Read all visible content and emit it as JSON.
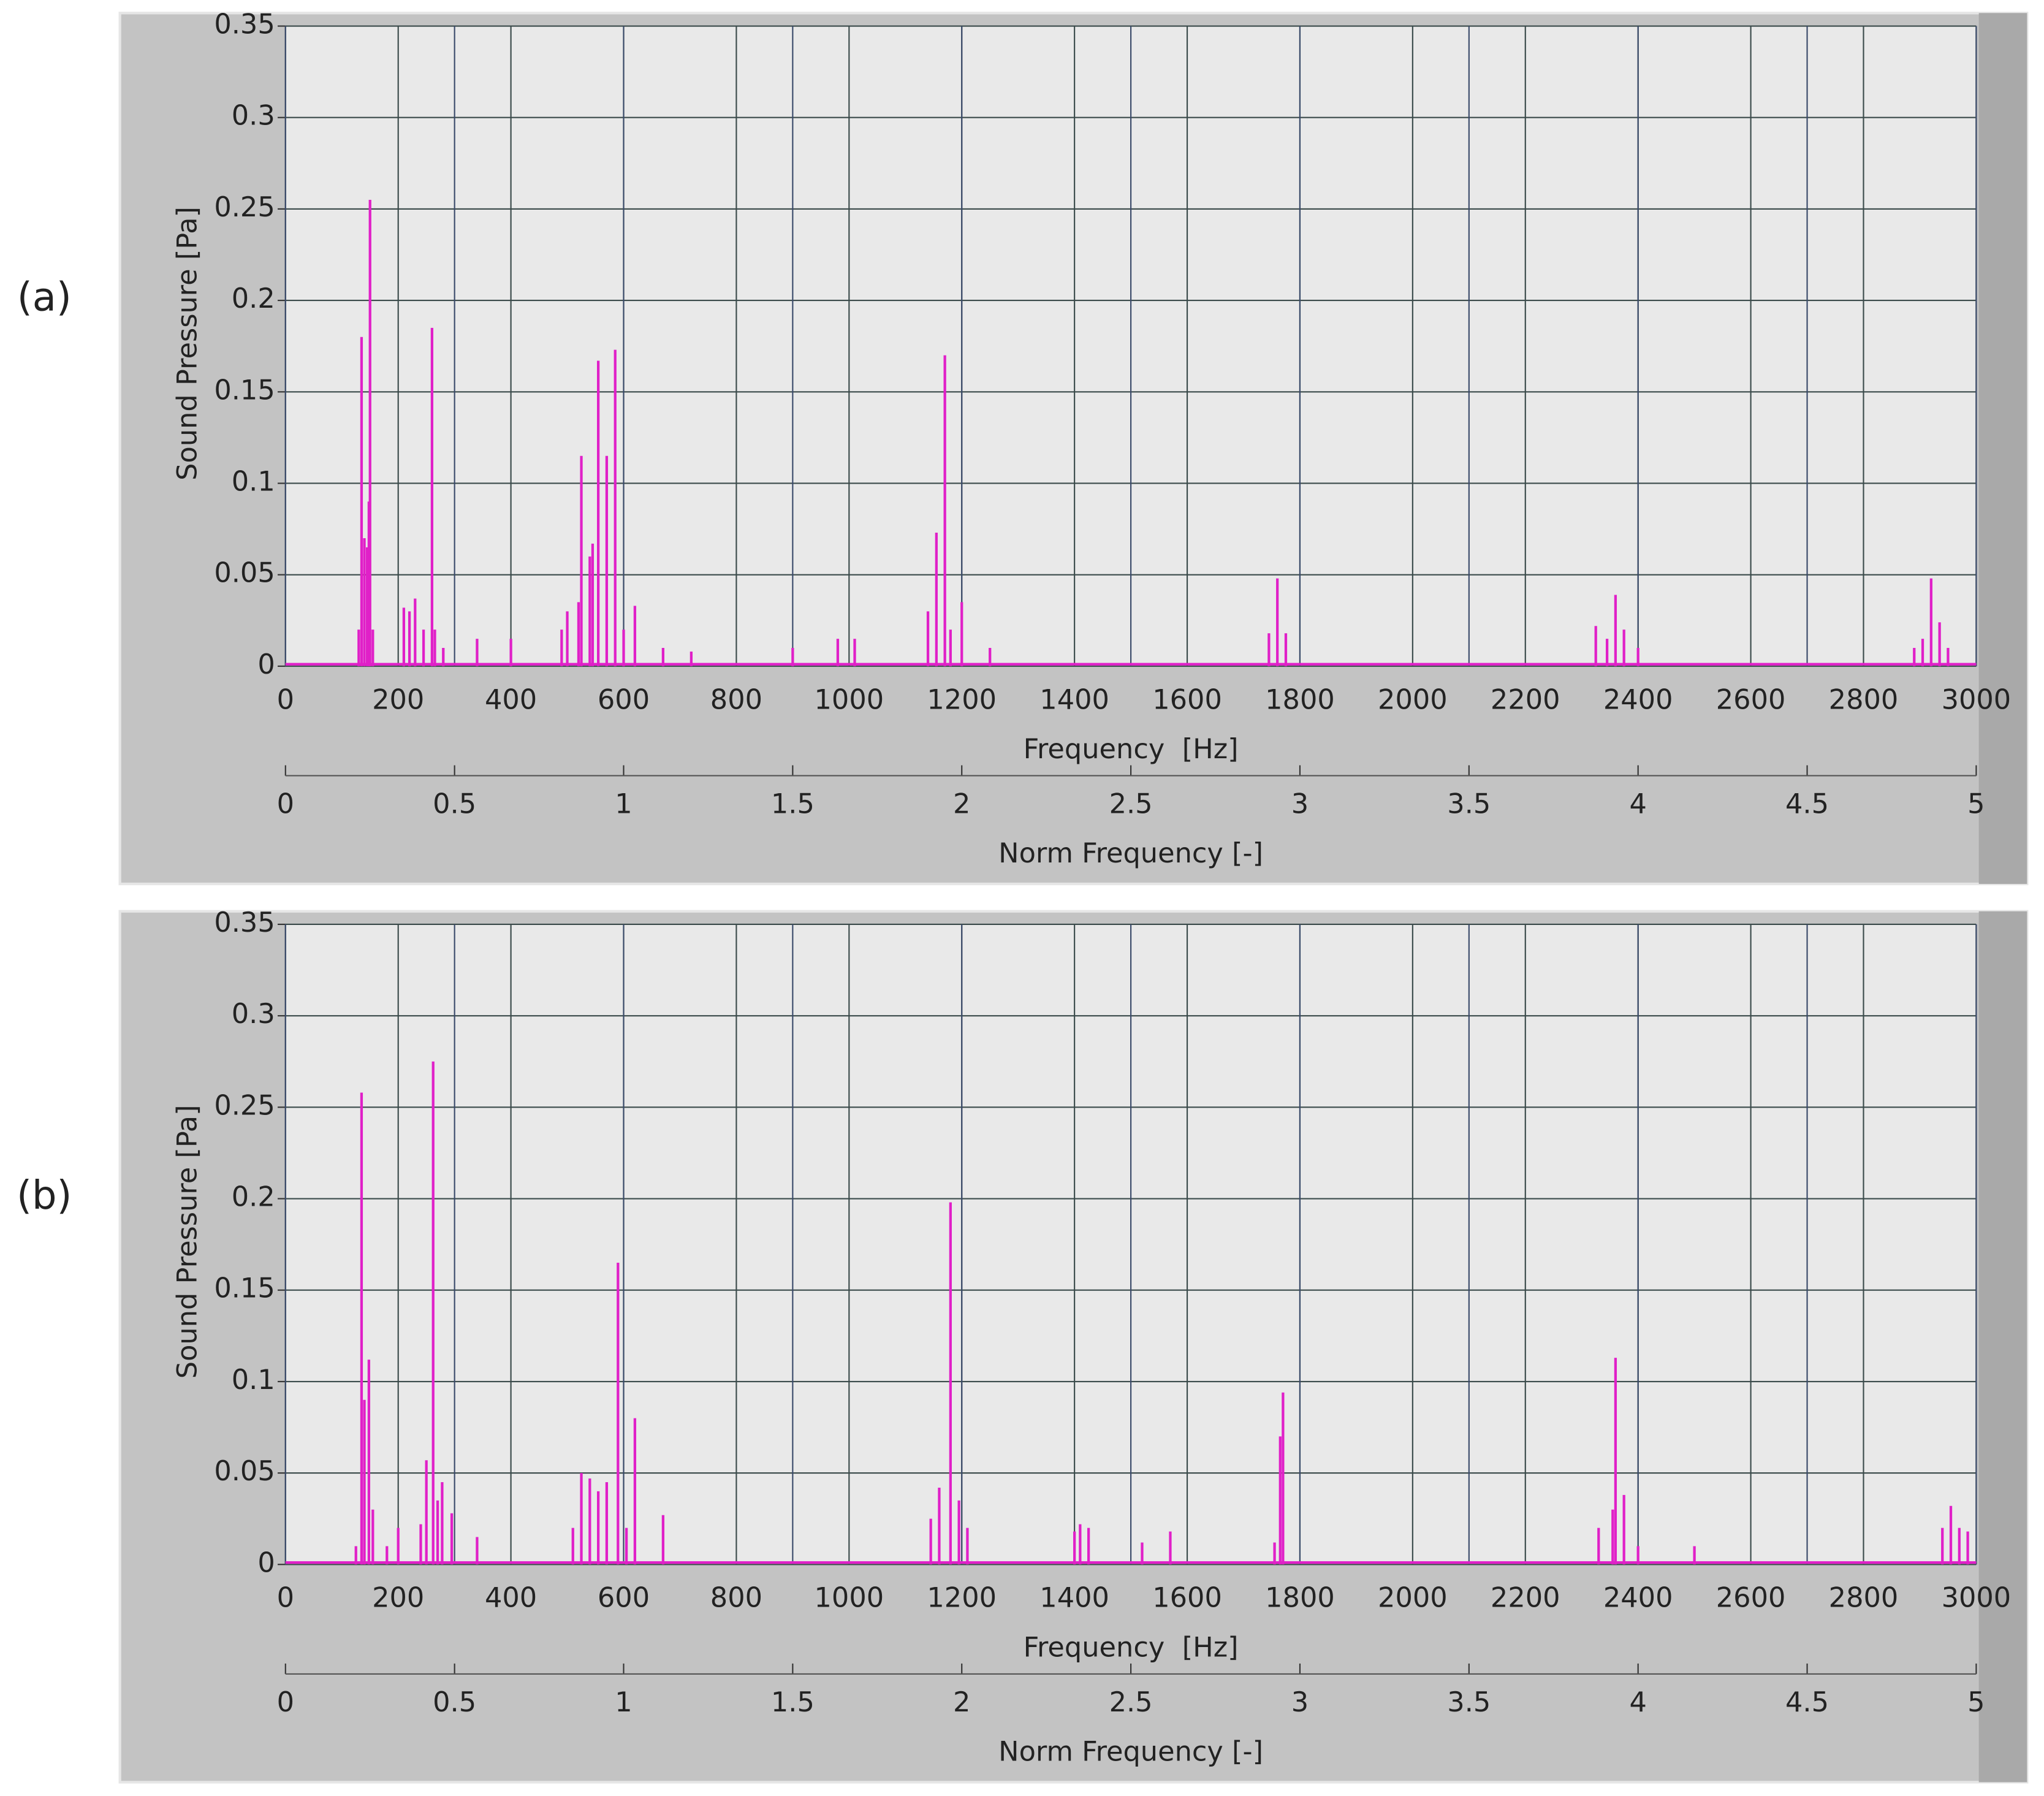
{
  "chart_data": [
    {
      "type": "stem",
      "panel_label": "(a)",
      "ylabel": "Sound Pressure [Pa]",
      "xlabel": "Frequency  [Hz]",
      "x2label": "Norm Frequency [-]",
      "color": "#e020c8",
      "grid": true,
      "xlim": [
        0,
        3000
      ],
      "xticks": [
        0,
        200,
        400,
        600,
        800,
        1000,
        1200,
        1400,
        1600,
        1800,
        2000,
        2200,
        2400,
        2600,
        2800,
        3000
      ],
      "ylim": [
        0,
        0.35
      ],
      "yticks": [
        0,
        0.05,
        0.1,
        0.15,
        0.2,
        0.25,
        0.3,
        0.35
      ],
      "x2lim": [
        0,
        5
      ],
      "x2ticks": [
        0,
        0.5,
        1,
        1.5,
        2,
        2.5,
        3,
        3.5,
        4,
        4.5,
        5
      ],
      "x": [
        130,
        135,
        140,
        145,
        148,
        150,
        155,
        210,
        220,
        230,
        245,
        260,
        265,
        280,
        340,
        400,
        490,
        500,
        520,
        525,
        540,
        545,
        555,
        570,
        585,
        600,
        620,
        670,
        720,
        900,
        980,
        1010,
        1140,
        1155,
        1170,
        1180,
        1200,
        1250,
        1745,
        1760,
        1775,
        2325,
        2345,
        2360,
        2375,
        2400,
        2890,
        2905,
        2920,
        2935,
        2950
      ],
      "values": [
        0.02,
        0.18,
        0.07,
        0.065,
        0.09,
        0.255,
        0.02,
        0.032,
        0.03,
        0.037,
        0.02,
        0.185,
        0.02,
        0.01,
        0.015,
        0.015,
        0.02,
        0.03,
        0.035,
        0.115,
        0.06,
        0.067,
        0.167,
        0.115,
        0.173,
        0.02,
        0.033,
        0.01,
        0.008,
        0.01,
        0.015,
        0.015,
        0.03,
        0.073,
        0.17,
        0.02,
        0.035,
        0.01,
        0.018,
        0.048,
        0.018,
        0.022,
        0.015,
        0.039,
        0.02,
        0.01,
        0.01,
        0.015,
        0.048,
        0.024,
        0.01
      ]
    },
    {
      "type": "stem",
      "panel_label": "(b)",
      "ylabel": "Sound Pressure [Pa]",
      "xlabel": "Frequency  [Hz]",
      "x2label": "Norm Frequency [-]",
      "color": "#e020c8",
      "grid": true,
      "xlim": [
        0,
        3000
      ],
      "xticks": [
        0,
        200,
        400,
        600,
        800,
        1000,
        1200,
        1400,
        1600,
        1800,
        2000,
        2200,
        2400,
        2600,
        2800,
        3000
      ],
      "ylim": [
        0,
        0.35
      ],
      "yticks": [
        0,
        0.05,
        0.1,
        0.15,
        0.2,
        0.25,
        0.3,
        0.35
      ],
      "x2lim": [
        0,
        5
      ],
      "x2ticks": [
        0,
        0.5,
        1,
        1.5,
        2,
        2.5,
        3,
        3.5,
        4,
        4.5,
        5
      ],
      "x": [
        125,
        135,
        140,
        148,
        155,
        180,
        200,
        240,
        250,
        262,
        270,
        278,
        295,
        340,
        510,
        525,
        540,
        555,
        570,
        590,
        605,
        620,
        670,
        1145,
        1160,
        1180,
        1195,
        1210,
        1400,
        1410,
        1425,
        1520,
        1570,
        1755,
        1765,
        1770,
        2330,
        2355,
        2360,
        2375,
        2400,
        2500,
        2940,
        2955,
        2970,
        2985
      ],
      "values": [
        0.01,
        0.258,
        0.09,
        0.112,
        0.03,
        0.01,
        0.02,
        0.022,
        0.057,
        0.275,
        0.035,
        0.045,
        0.028,
        0.015,
        0.02,
        0.05,
        0.047,
        0.04,
        0.045,
        0.165,
        0.02,
        0.08,
        0.027,
        0.025,
        0.042,
        0.198,
        0.035,
        0.02,
        0.018,
        0.022,
        0.02,
        0.012,
        0.018,
        0.012,
        0.07,
        0.094,
        0.02,
        0.03,
        0.113,
        0.038,
        0.01,
        0.01,
        0.02,
        0.032,
        0.02,
        0.018
      ]
    }
  ]
}
